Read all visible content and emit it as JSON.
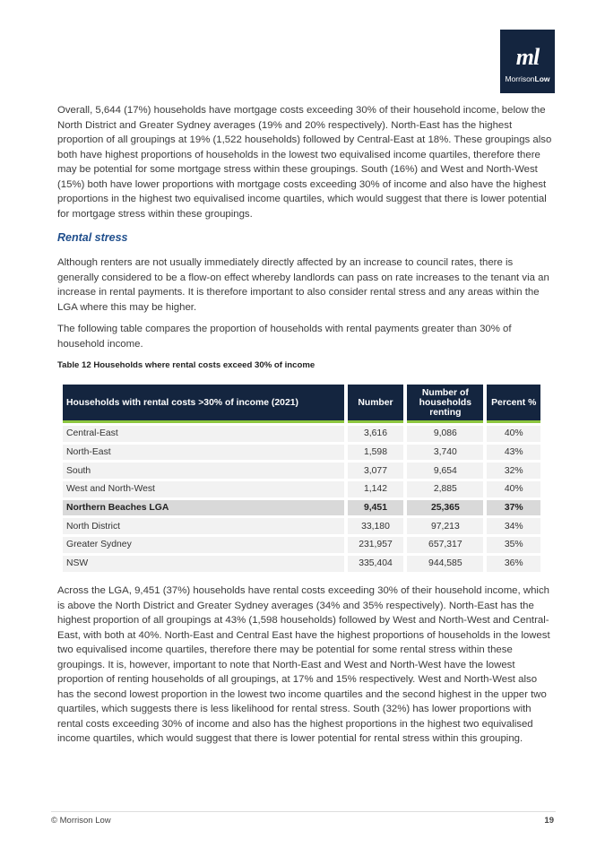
{
  "logo": {
    "mark": "ml",
    "name_regular": "Morrison",
    "name_bold": "Low"
  },
  "paragraphs_top": [
    "Overall, 5,644 (17%) households have mortgage costs exceeding 30% of their household income, below the North District and Greater Sydney averages (19% and 20% respectively). North-East has the highest proportion of all groupings at 19% (1,522 households) followed by Central-East at 18%. These groupings also both have highest proportions of households in the lowest two equivalised income quartiles, therefore there may be potential for some mortgage stress within these groupings. South (16%) and West and North-West (15%) both have lower proportions with mortgage costs exceeding 30% of income and also have the highest proportions in the highest two equivalised income quartiles, which would suggest that there is lower potential for mortgage stress within these groupings."
  ],
  "heading": "Rental stress",
  "paragraphs_mid": [
    "Although renters are not usually immediately directly affected by an increase to council rates, there is generally considered to be a flow-on effect whereby landlords can pass on rate increases to the tenant via an increase in rental payments. It is therefore important to also consider rental stress and any areas within the LGA where this may be higher.",
    "The following table compares the proportion of households with rental payments greater than 30% of household income."
  ],
  "table": {
    "caption": "Table 12 Households where rental costs exceed 30% of income",
    "header": [
      "Households with rental costs >30% of income (2021)",
      "Number",
      "Number of households renting",
      "Percent %"
    ],
    "rows": [
      [
        "Central-East",
        "3,616",
        "9,086",
        "40%"
      ],
      [
        "North-East",
        "1,598",
        "3,740",
        "43%"
      ],
      [
        "South",
        "3,077",
        "9,654",
        "32%"
      ],
      [
        "West and North-West",
        "1,142",
        "2,885",
        "40%"
      ],
      [
        "Northern Beaches LGA",
        "9,451",
        "25,365",
        "37%"
      ],
      [
        "North District",
        "33,180",
        "97,213",
        "34%"
      ],
      [
        "Greater Sydney",
        "231,957",
        "657,317",
        "35%"
      ],
      [
        "NSW",
        "335,404",
        "944,585",
        "36%"
      ]
    ]
  },
  "paragraph_bottom": "Across the LGA, 9,451 (37%) households have rental costs exceeding 30% of their household income, which is above the North District and Greater Sydney averages (34% and 35% respectively). North-East has the highest proportion of all groupings at 43% (1,598 households) followed by West and North-West and Central-East, with both at 40%. North-East and Central East have the highest proportions of households in the lowest two equivalised income quartiles, therefore there may be potential for some rental stress within these groupings. It is, however, important to note that North-East and West and North-West have the lowest proportion of renting households of all groupings, at 17% and 15% respectively. West and North-West also has the second lowest proportion in the lowest two income quartiles and the second highest in the upper two quartiles, which suggests there is less likelihood for rental stress. South (32%) has lower proportions with rental costs exceeding 30% of income and also has the highest proportions in the highest two equivalised income quartiles, which would suggest that there is lower potential for rental stress within this grouping.",
  "footer": {
    "left": "© Morrison Low",
    "page": "19"
  }
}
